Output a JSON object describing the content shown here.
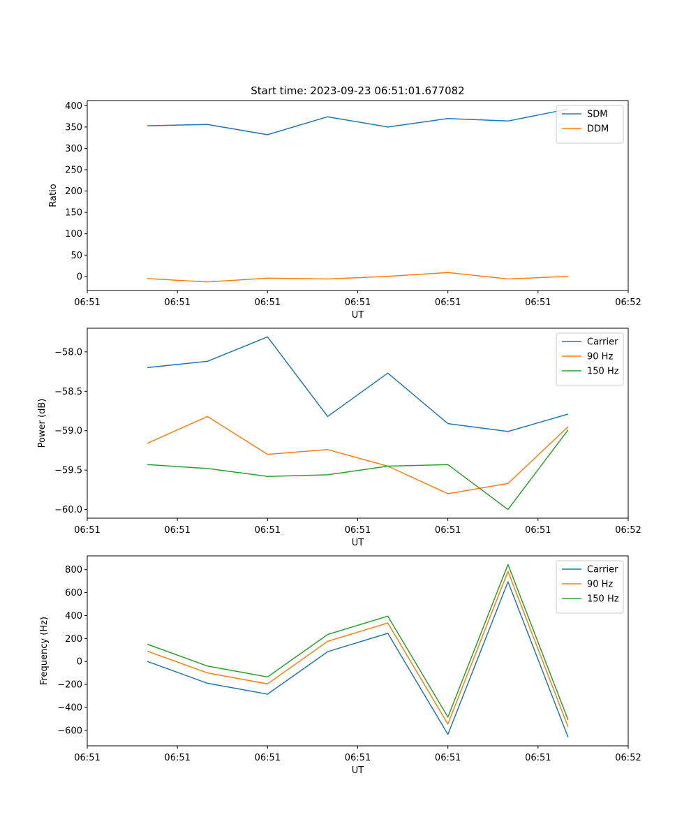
{
  "title": "Start time: 2023-09-23 06:51:01.677082",
  "chart_data": [
    {
      "type": "line",
      "title": "Start time: 2023-09-23 06:51:01.677082",
      "xlabel": "UT",
      "ylabel": "Ratio",
      "x_index": [
        1,
        2,
        3,
        4,
        5,
        6,
        7,
        8
      ],
      "xlim": [
        0,
        9
      ],
      "x_ticks": [
        0,
        1.5,
        3,
        4.5,
        6,
        7.5,
        9
      ],
      "x_tick_labels": [
        "06:51",
        "06:51",
        "06:51",
        "06:51",
        "06:51",
        "06:51",
        "06:52"
      ],
      "ylim": [
        -33,
        412
      ],
      "y_ticks": [
        0,
        50,
        100,
        150,
        200,
        250,
        300,
        350,
        400
      ],
      "y_tick_labels": [
        "0",
        "50",
        "100",
        "150",
        "200",
        "250",
        "300",
        "350",
        "400"
      ],
      "legend_position": "upper-right",
      "series": [
        {
          "name": "SDM",
          "color": "#1f77b4",
          "values": [
            353,
            356,
            332,
            374,
            350,
            370,
            364,
            392
          ]
        },
        {
          "name": "DDM",
          "color": "#ff7f0e",
          "values": [
            -5,
            -13,
            -4,
            -6,
            0,
            9,
            -6,
            0
          ]
        }
      ]
    },
    {
      "type": "line",
      "title": "",
      "xlabel": "UT",
      "ylabel": "Power (dB)",
      "x_index": [
        1,
        2,
        3,
        4,
        5,
        6,
        7,
        8
      ],
      "xlim": [
        0,
        9
      ],
      "x_ticks": [
        0,
        1.5,
        3,
        4.5,
        6,
        7.5,
        9
      ],
      "x_tick_labels": [
        "06:51",
        "06:51",
        "06:51",
        "06:51",
        "06:51",
        "06:51",
        "06:52"
      ],
      "ylim": [
        -60.11,
        -57.7
      ],
      "y_ticks": [
        -60.0,
        -59.5,
        -59.0,
        -58.5,
        -58.0
      ],
      "y_tick_labels": [
        "−60.0",
        "−59.5",
        "−59.0",
        "−58.5",
        "−58.0"
      ],
      "legend_position": "upper-right",
      "series": [
        {
          "name": "Carrier",
          "color": "#1f77b4",
          "values": [
            -58.2,
            -58.12,
            -57.81,
            -58.82,
            -58.27,
            -58.91,
            -59.01,
            -58.79
          ]
        },
        {
          "name": "90 Hz",
          "color": "#ff7f0e",
          "values": [
            -59.16,
            -58.82,
            -59.3,
            -59.24,
            -59.45,
            -59.8,
            -59.67,
            -58.95
          ]
        },
        {
          "name": "150 Hz",
          "color": "#2ca02c",
          "values": [
            -59.43,
            -59.48,
            -59.58,
            -59.56,
            -59.45,
            -59.43,
            -60.0,
            -58.99
          ]
        }
      ]
    },
    {
      "type": "line",
      "title": "",
      "xlabel": "UT",
      "ylabel": "Frequency (Hz)",
      "x_index": [
        1,
        2,
        3,
        4,
        5,
        6,
        7,
        8
      ],
      "xlim": [
        0,
        9
      ],
      "x_ticks": [
        0,
        1.5,
        3,
        4.5,
        6,
        7.5,
        9
      ],
      "x_tick_labels": [
        "06:51",
        "06:51",
        "06:51",
        "06:51",
        "06:51",
        "06:51",
        "06:52"
      ],
      "ylim": [
        -735,
        920
      ],
      "y_ticks": [
        -600,
        -400,
        -200,
        0,
        200,
        400,
        600,
        800
      ],
      "y_tick_labels": [
        "−600",
        "−400",
        "−200",
        "0",
        "200",
        "400",
        "600",
        "800"
      ],
      "legend_position": "upper-right",
      "series": [
        {
          "name": "Carrier",
          "color": "#1f77b4",
          "values": [
            0,
            -190,
            -285,
            85,
            245,
            -635,
            695,
            -660
          ]
        },
        {
          "name": "90 Hz",
          "color": "#ff7f0e",
          "values": [
            90,
            -100,
            -195,
            175,
            335,
            -545,
            785,
            -570
          ]
        },
        {
          "name": "150 Hz",
          "color": "#2ca02c",
          "values": [
            150,
            -40,
            -135,
            235,
            395,
            -485,
            845,
            -510
          ]
        }
      ]
    }
  ]
}
